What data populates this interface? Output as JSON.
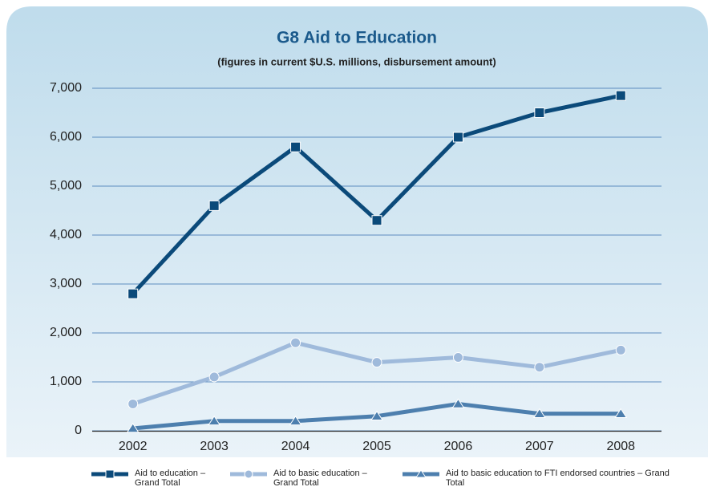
{
  "chart_data": {
    "type": "line",
    "title": "G8 Aid to Education",
    "subtitle": "(figures in current $U.S. millions, disbursement amount)",
    "categories": [
      "2002",
      "2003",
      "2004",
      "2005",
      "2006",
      "2007",
      "2008"
    ],
    "series": [
      {
        "name": "Aid to education – Grand Total",
        "color": "#0b4a7a",
        "marker": "square",
        "values": [
          2800,
          4600,
          5800,
          4300,
          6000,
          6500,
          6850
        ]
      },
      {
        "name": "Aid to basic education – Grand Total",
        "color": "#9fbadb",
        "marker": "circle",
        "values": [
          550,
          1100,
          1800,
          1400,
          1500,
          1300,
          1650
        ]
      },
      {
        "name": "Aid to basic education to FTI endorsed countries – Grand Total",
        "color": "#4d7fae",
        "marker": "triangle",
        "values": [
          50,
          200,
          200,
          300,
          550,
          350,
          350
        ]
      }
    ],
    "ylim": [
      0,
      7000
    ],
    "yticks": [
      0,
      {
        "value": 1000,
        "label": "1,000"
      },
      {
        "value": 2000,
        "label": "2,000"
      },
      {
        "value": 3000,
        "label": "3,000"
      },
      {
        "value": 4000,
        "label": "4,000"
      },
      {
        "value": 5000,
        "label": "5,000"
      },
      {
        "value": 6000,
        "label": "6,000"
      },
      {
        "value": 7000,
        "label": "7,000"
      }
    ],
    "grid": true
  }
}
